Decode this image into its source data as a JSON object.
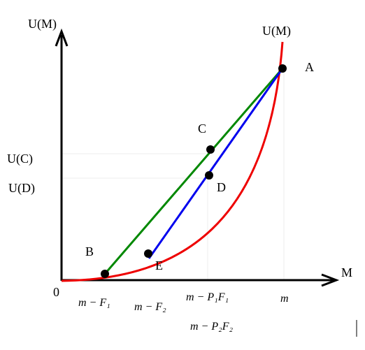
{
  "axes": {
    "y_label": "U(M)",
    "x_label": "M",
    "origin": "0"
  },
  "curve_label": "U(M)",
  "points": {
    "a": "A",
    "b": "B",
    "c": "C",
    "d": "D",
    "e": "E"
  },
  "y_labels": {
    "uc": "U(C)",
    "ud": "U(D)"
  },
  "x_labels": {
    "m_f1": "m − F₁",
    "m_f2": "m − F₂",
    "m_p1f1": "m − P₁F₁",
    "m": "m",
    "m_p2f2": "m − P₂F₂"
  }
}
